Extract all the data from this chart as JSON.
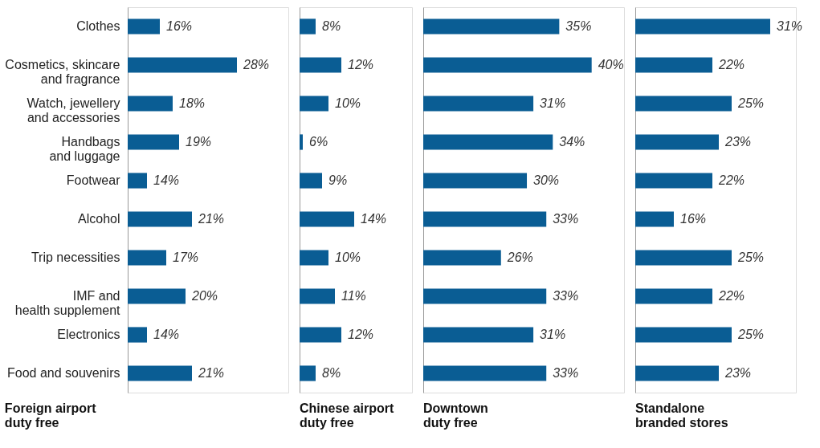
{
  "chart_data": [
    {
      "type": "bar",
      "orientation": "horizontal",
      "title": "Foreign airport\nduty free",
      "categories": [
        "Clothes",
        "Cosmetics, skincare\nand fragrance",
        "Watch, jewellery\nand accessories",
        "Handbags\nand luggage",
        "Footwear",
        "Alcohol",
        "Trip necessities",
        "IMF and\nhealth supplement",
        "Electronics",
        "Food and souvenirs"
      ],
      "values": [
        16,
        28,
        18,
        19,
        14,
        21,
        17,
        20,
        14,
        21
      ],
      "value_labels": [
        "16%",
        "28%",
        "18%",
        "19%",
        "14%",
        "21%",
        "17%",
        "20%",
        "14%",
        "21%"
      ],
      "color": "#0a5d94",
      "xlim": [
        11,
        36
      ],
      "grid": false,
      "tick_labels": "y"
    },
    {
      "type": "bar",
      "orientation": "horizontal",
      "title": "Chinese airport\nduty free",
      "values": [
        8,
        12,
        10,
        6,
        9,
        14,
        10,
        11,
        12,
        8
      ],
      "value_labels": [
        "8%",
        "12%",
        "10%",
        "6%",
        "9%",
        "14%",
        "10%",
        "11%",
        "12%",
        "8%"
      ],
      "color": "#0a5d94",
      "xlim": [
        5.5,
        23
      ],
      "grid": false,
      "tick_labels": false
    },
    {
      "type": "bar",
      "orientation": "horizontal",
      "title": "Downtown\nduty free",
      "values": [
        35,
        40,
        31,
        34,
        30,
        33,
        26,
        33,
        31,
        33
      ],
      "value_labels": [
        "35%",
        "40%",
        "31%",
        "34%",
        "30%",
        "33%",
        "26%",
        "33%",
        "31%",
        "33%"
      ],
      "color": "#0a5d94",
      "xlim": [
        14,
        45
      ],
      "grid": false,
      "tick_labels": false
    },
    {
      "type": "bar",
      "orientation": "horizontal",
      "title": "Standalone\nbranded stores",
      "values": [
        31,
        22,
        25,
        23,
        22,
        16,
        25,
        22,
        25,
        23
      ],
      "value_labels": [
        "31%",
        "22%",
        "25%",
        "23%",
        "22%",
        "16%",
        "25%",
        "22%",
        "25%",
        "23%"
      ],
      "color": "#0a5d94",
      "xlim": [
        10,
        35
      ],
      "grid": false,
      "tick_labels": false
    }
  ]
}
